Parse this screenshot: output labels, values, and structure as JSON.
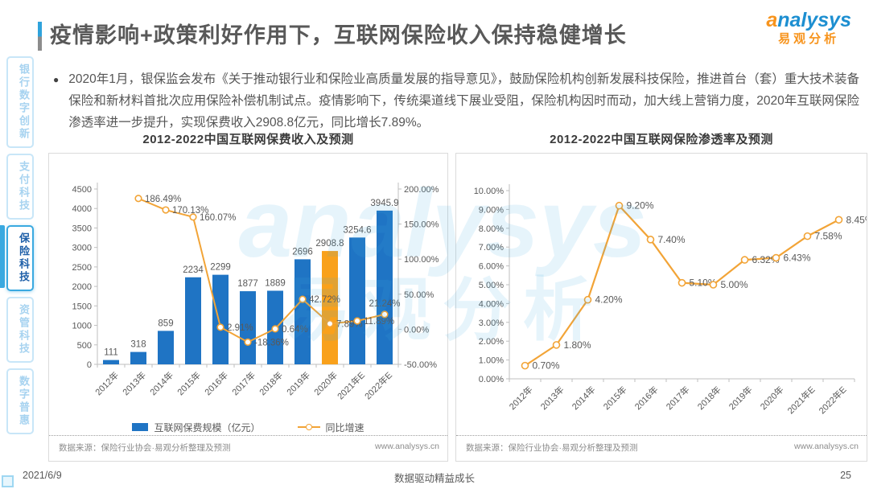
{
  "header": {
    "title": "疫情影响+政策利好作用下，互联网保险收入保持稳健增长",
    "bullet_glyph": "●",
    "bullet_text": "2020年1月，银保监会发布《关于推动银行业和保险业高质量发展的指导意见》，鼓励保险机构创新发展科技保险，推进首台（套）重大技术装备保险和新材料首批次应用保险补偿机制试点。疫情影响下，传统渠道线下展业受阻，保险机构因时而动，加大线上营销力度，2020年互联网保险渗透率进一步提升，实现保费收入2908.8亿元，同比增长7.89%。",
    "logo": {
      "brand_first": "a",
      "brand_rest": "nalysys",
      "brand_cn": "易观分析"
    }
  },
  "sidebar": {
    "items": [
      {
        "label": "银行数字创新",
        "active": false
      },
      {
        "label": "支付科技",
        "active": false
      },
      {
        "label": "保险科技",
        "active": true
      },
      {
        "label": "资管科技",
        "active": false
      },
      {
        "label": "数字普惠",
        "active": false
      }
    ]
  },
  "left_panel": {
    "title": "2012-2022中国互联网保费收入及预测",
    "legend_bar": "互联网保费规模（亿元）",
    "legend_line": "同比增速",
    "source": "数据来源：保险行业协会·易观分析整理及预测",
    "site": "www.analysys.cn"
  },
  "right_panel": {
    "title": "2012-2022中国互联网保险渗透率及预测",
    "source": "数据来源：保险行业协会·易观分析整理及预测",
    "site": "www.analysys.cn"
  },
  "footer": {
    "date": "2021/6/9",
    "center": "数据驱动精益成长",
    "page": "25"
  },
  "colors": {
    "bar": "#1F74C4",
    "bar_highlight": "#F9A11B",
    "line": "#F2A437",
    "axis": "#BFBFBF",
    "tick_text": "#595959",
    "label_text": "#595959",
    "sidebar_active": "#3AA9E0",
    "logo_orange": "#F7941D",
    "logo_blue": "#1D8FD1"
  },
  "chart_data": [
    {
      "type": "bar",
      "title": "2012-2022中国互联网保费收入及预测",
      "categories": [
        "2012年",
        "2013年",
        "2014年",
        "2015年",
        "2016年",
        "2017年",
        "2018年",
        "2019年",
        "2020年",
        "2021年E",
        "2022年E"
      ],
      "series": [
        {
          "name": "互联网保费规模（亿元）",
          "type": "bar",
          "axis": "left",
          "values": [
            111,
            318,
            859,
            2234,
            2299,
            1877,
            1889,
            2696,
            2908.8,
            3254.6,
            3945.9
          ],
          "labels": [
            "111",
            "318",
            "859",
            "2234",
            "2299",
            "1877",
            "1889",
            "2696",
            "2908.8",
            "3254.6",
            "3945.9"
          ],
          "highlight_index": 8
        },
        {
          "name": "同比增速",
          "type": "line",
          "axis": "right",
          "values": [
            null,
            186.49,
            170.13,
            160.07,
            2.91,
            -18.36,
            0.64,
            42.72,
            7.89,
            11.89,
            21.24
          ],
          "labels": [
            null,
            "186.49%",
            "170.13%",
            "160.07%",
            "2.91%",
            "-18.36%",
            "0.64%",
            "42.72%",
            "7.89%",
            "11.89%",
            "21.24%"
          ]
        }
      ],
      "y_left": {
        "min": 0,
        "max": 4500,
        "step": 500
      },
      "y_right": {
        "min": -50,
        "max": 200,
        "step": 50,
        "suffix": "%"
      },
      "grid": false,
      "legend_position": "bottom"
    },
    {
      "type": "line",
      "title": "2012-2022中国互联网保险渗透率及预测",
      "categories": [
        "2012年",
        "2013年",
        "2014年",
        "2015年",
        "2016年",
        "2017年",
        "2018年",
        "2019年",
        "2020年",
        "2021年E",
        "2022年E"
      ],
      "series": [
        {
          "name": "渗透率",
          "type": "line",
          "values": [
            0.7,
            1.8,
            4.2,
            9.2,
            7.4,
            5.1,
            5.0,
            6.32,
            6.43,
            7.58,
            8.45
          ],
          "labels": [
            "0.70%",
            "1.80%",
            "4.20%",
            "9.20%",
            "7.40%",
            "5.10%",
            "5.00%",
            "6.32%",
            "6.43%",
            "7.58%",
            "8.45%"
          ]
        }
      ],
      "y": {
        "min": 0,
        "max": 10,
        "step": 1,
        "suffix": "%"
      },
      "grid": false,
      "legend_position": "none"
    }
  ]
}
